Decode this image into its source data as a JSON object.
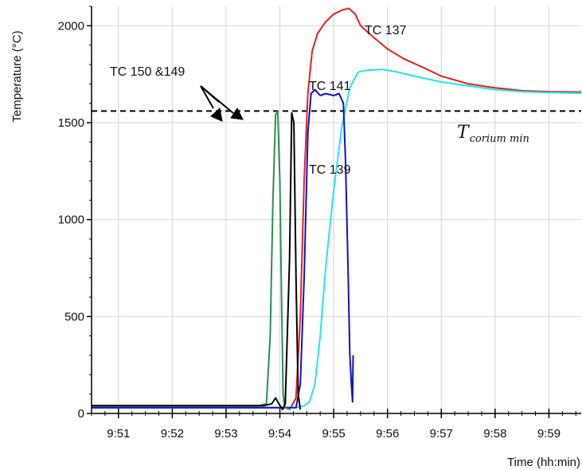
{
  "chart_data": {
    "type": "line",
    "xlabel": "Time (hh:min)",
    "ylabel": "Temperature (°C)",
    "xlim": [
      9.5,
      18.6
    ],
    "ylim": [
      0,
      2100
    ],
    "x_ticks": [
      {
        "value": 10,
        "label": "9:51"
      },
      {
        "value": 11,
        "label": "9:52"
      },
      {
        "value": 12,
        "label": "9:53"
      },
      {
        "value": 13,
        "label": "9:54"
      },
      {
        "value": 14,
        "label": "9:55"
      },
      {
        "value": 15,
        "label": "9:56"
      },
      {
        "value": 16,
        "label": "9:57"
      },
      {
        "value": 17,
        "label": "9:58"
      },
      {
        "value": 18,
        "label": "9:59"
      }
    ],
    "y_ticks": [
      {
        "value": 0,
        "label": "0"
      },
      {
        "value": 500,
        "label": "500"
      },
      {
        "value": 1000,
        "label": "1000"
      },
      {
        "value": 1500,
        "label": "1500"
      },
      {
        "value": 2000,
        "label": "2000"
      }
    ],
    "grid": true,
    "colors": {
      "tc137": "#ee1c1c",
      "tc141": "#22e6ee",
      "tc139": "#1010c8",
      "tc150": "#2e8b57",
      "tc149": "#000000",
      "threshold": "#000000"
    },
    "threshold": {
      "value": 1560,
      "label_main": "T",
      "label_sub": "corium min"
    },
    "annotations": {
      "tc137": "TC 137",
      "tc141": "TC 141",
      "tc139": "TC 139",
      "tc150_149": "TC 150 &149"
    },
    "series": [
      {
        "key": "tc137",
        "points": [
          [
            9.5,
            30
          ],
          [
            13.2,
            30
          ],
          [
            13.3,
            80
          ],
          [
            13.38,
            500
          ],
          [
            13.45,
            1200
          ],
          [
            13.52,
            1650
          ],
          [
            13.6,
            1870
          ],
          [
            13.7,
            1960
          ],
          [
            13.85,
            2020
          ],
          [
            14.0,
            2060
          ],
          [
            14.15,
            2080
          ],
          [
            14.28,
            2090
          ],
          [
            14.4,
            2060
          ],
          [
            14.5,
            2000
          ],
          [
            14.7,
            1950
          ],
          [
            15.0,
            1880
          ],
          [
            15.3,
            1830
          ],
          [
            15.7,
            1780
          ],
          [
            16.0,
            1740
          ],
          [
            16.5,
            1700
          ],
          [
            17.0,
            1680
          ],
          [
            17.5,
            1665
          ],
          [
            18.0,
            1660
          ],
          [
            18.6,
            1658
          ]
        ]
      },
      {
        "key": "tc141",
        "points": [
          [
            9.5,
            30
          ],
          [
            13.3,
            30
          ],
          [
            13.45,
            40
          ],
          [
            13.55,
            60
          ],
          [
            13.65,
            150
          ],
          [
            13.75,
            400
          ],
          [
            13.85,
            750
          ],
          [
            14.0,
            1150
          ],
          [
            14.15,
            1480
          ],
          [
            14.3,
            1680
          ],
          [
            14.45,
            1760
          ],
          [
            14.6,
            1770
          ],
          [
            14.9,
            1775
          ],
          [
            15.2,
            1760
          ],
          [
            15.5,
            1740
          ],
          [
            16.0,
            1710
          ],
          [
            16.5,
            1690
          ],
          [
            17.0,
            1670
          ],
          [
            17.5,
            1660
          ],
          [
            18.0,
            1655
          ],
          [
            18.6,
            1652
          ]
        ]
      },
      {
        "key": "tc139",
        "points": [
          [
            9.5,
            30
          ],
          [
            13.3,
            30
          ],
          [
            13.38,
            150
          ],
          [
            13.45,
            700
          ],
          [
            13.52,
            1450
          ],
          [
            13.58,
            1650
          ],
          [
            13.65,
            1670
          ],
          [
            13.75,
            1640
          ],
          [
            13.85,
            1650
          ],
          [
            14.0,
            1640
          ],
          [
            14.1,
            1650
          ],
          [
            14.18,
            1600
          ],
          [
            14.22,
            1300
          ],
          [
            14.27,
            700
          ],
          [
            14.3,
            300
          ],
          [
            14.33,
            150
          ],
          [
            14.35,
            60
          ],
          [
            14.36,
            300
          ]
        ]
      },
      {
        "key": "tc150",
        "points": [
          [
            9.5,
            40
          ],
          [
            12.6,
            40
          ],
          [
            12.75,
            50
          ],
          [
            12.82,
            400
          ],
          [
            12.87,
            1100
          ],
          [
            12.92,
            1540
          ],
          [
            12.96,
            1560
          ],
          [
            13.0,
            1200
          ],
          [
            13.03,
            600
          ],
          [
            13.06,
            100
          ],
          [
            13.09,
            30
          ],
          [
            13.2,
            20
          ]
        ]
      },
      {
        "key": "tc149",
        "points": [
          [
            9.5,
            40
          ],
          [
            12.7,
            40
          ],
          [
            12.85,
            50
          ],
          [
            12.92,
            80
          ],
          [
            12.98,
            50
          ],
          [
            13.05,
            20
          ],
          [
            13.1,
            50
          ],
          [
            13.18,
            800
          ],
          [
            13.22,
            1550
          ],
          [
            13.26,
            1500
          ],
          [
            13.3,
            700
          ],
          [
            13.34,
            100
          ],
          [
            13.38,
            20
          ]
        ]
      }
    ]
  }
}
